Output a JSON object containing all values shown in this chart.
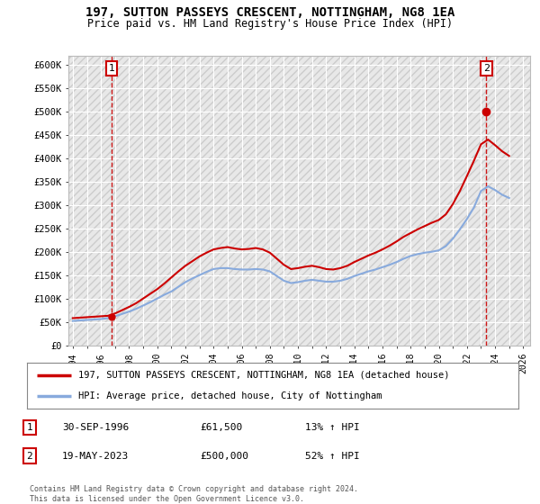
{
  "title_line1": "197, SUTTON PASSEYS CRESCENT, NOTTINGHAM, NG8 1EA",
  "title_line2": "Price paid vs. HM Land Registry's House Price Index (HPI)",
  "ylim": [
    0,
    620000
  ],
  "xlim_start": 1993.7,
  "xlim_end": 2026.5,
  "ytick_labels": [
    "£0",
    "£50K",
    "£100K",
    "£150K",
    "£200K",
    "£250K",
    "£300K",
    "£350K",
    "£400K",
    "£450K",
    "£500K",
    "£550K",
    "£600K"
  ],
  "ytick_values": [
    0,
    50000,
    100000,
    150000,
    200000,
    250000,
    300000,
    350000,
    400000,
    450000,
    500000,
    550000,
    600000
  ],
  "background_color": "#ffffff",
  "plot_bg_color": "#e8e8e8",
  "hatch_color": "#cccccc",
  "grid_color": "#ffffff",
  "red_line_color": "#cc0000",
  "blue_line_color": "#88aadd",
  "dashed_line_color": "#cc0000",
  "point1_x": 1996.75,
  "point1_y": 61500,
  "point2_x": 2023.38,
  "point2_y": 500000,
  "legend_line1": "197, SUTTON PASSEYS CRESCENT, NOTTINGHAM, NG8 1EA (detached house)",
  "legend_line2": "HPI: Average price, detached house, City of Nottingham",
  "footer": "Contains HM Land Registry data © Crown copyright and database right 2024.\nThis data is licensed under the Open Government Licence v3.0.",
  "hpi_x": [
    1994,
    1994.5,
    1995,
    1995.5,
    1996,
    1996.5,
    1997,
    1997.5,
    1998,
    1998.5,
    1999,
    1999.5,
    2000,
    2000.5,
    2001,
    2001.5,
    2002,
    2002.5,
    2003,
    2003.5,
    2004,
    2004.5,
    2005,
    2005.5,
    2006,
    2006.5,
    2007,
    2007.5,
    2008,
    2008.5,
    2009,
    2009.5,
    2010,
    2010.5,
    2011,
    2011.5,
    2012,
    2012.5,
    2013,
    2013.5,
    2014,
    2014.5,
    2015,
    2015.5,
    2016,
    2016.5,
    2017,
    2017.5,
    2018,
    2018.5,
    2019,
    2019.5,
    2020,
    2020.5,
    2021,
    2021.5,
    2022,
    2022.5,
    2023,
    2023.5,
    2024,
    2024.5,
    2025
  ],
  "hpi_y": [
    52000,
    53000,
    54000,
    55000,
    56000,
    58000,
    62000,
    67000,
    72000,
    78000,
    85000,
    92000,
    100000,
    108000,
    115000,
    125000,
    135000,
    143000,
    150000,
    157000,
    163000,
    165000,
    165000,
    163000,
    162000,
    162000,
    163000,
    162000,
    158000,
    148000,
    138000,
    133000,
    135000,
    138000,
    140000,
    138000,
    136000,
    136000,
    138000,
    142000,
    148000,
    153000,
    158000,
    162000,
    167000,
    172000,
    178000,
    185000,
    191000,
    195000,
    198000,
    200000,
    203000,
    212000,
    228000,
    248000,
    270000,
    295000,
    330000,
    340000,
    332000,
    322000,
    315000
  ],
  "price_x": [
    1994,
    1994.5,
    1995,
    1995.5,
    1996,
    1996.5,
    1997,
    1997.5,
    1998,
    1998.5,
    1999,
    1999.5,
    2000,
    2000.5,
    2001,
    2001.5,
    2002,
    2002.5,
    2003,
    2003.5,
    2004,
    2004.5,
    2005,
    2005.5,
    2006,
    2006.5,
    2007,
    2007.5,
    2008,
    2008.5,
    2009,
    2009.5,
    2010,
    2010.5,
    2011,
    2011.5,
    2012,
    2012.5,
    2013,
    2013.5,
    2014,
    2014.5,
    2015,
    2015.5,
    2016,
    2016.5,
    2017,
    2017.5,
    2018,
    2018.5,
    2019,
    2019.5,
    2020,
    2020.5,
    2021,
    2021.5,
    2022,
    2022.5,
    2023,
    2023.5,
    2024,
    2024.5,
    2025
  ],
  "price_y": [
    58000,
    59000,
    60000,
    61000,
    62000,
    63000,
    68000,
    75000,
    82000,
    90000,
    100000,
    110000,
    120000,
    132000,
    145000,
    158000,
    170000,
    180000,
    190000,
    198000,
    205000,
    208000,
    210000,
    207000,
    205000,
    206000,
    208000,
    205000,
    198000,
    185000,
    172000,
    163000,
    165000,
    168000,
    170000,
    167000,
    163000,
    162000,
    165000,
    170000,
    178000,
    185000,
    192000,
    198000,
    205000,
    213000,
    222000,
    232000,
    240000,
    248000,
    255000,
    262000,
    268000,
    280000,
    302000,
    330000,
    362000,
    395000,
    430000,
    440000,
    428000,
    415000,
    405000
  ]
}
